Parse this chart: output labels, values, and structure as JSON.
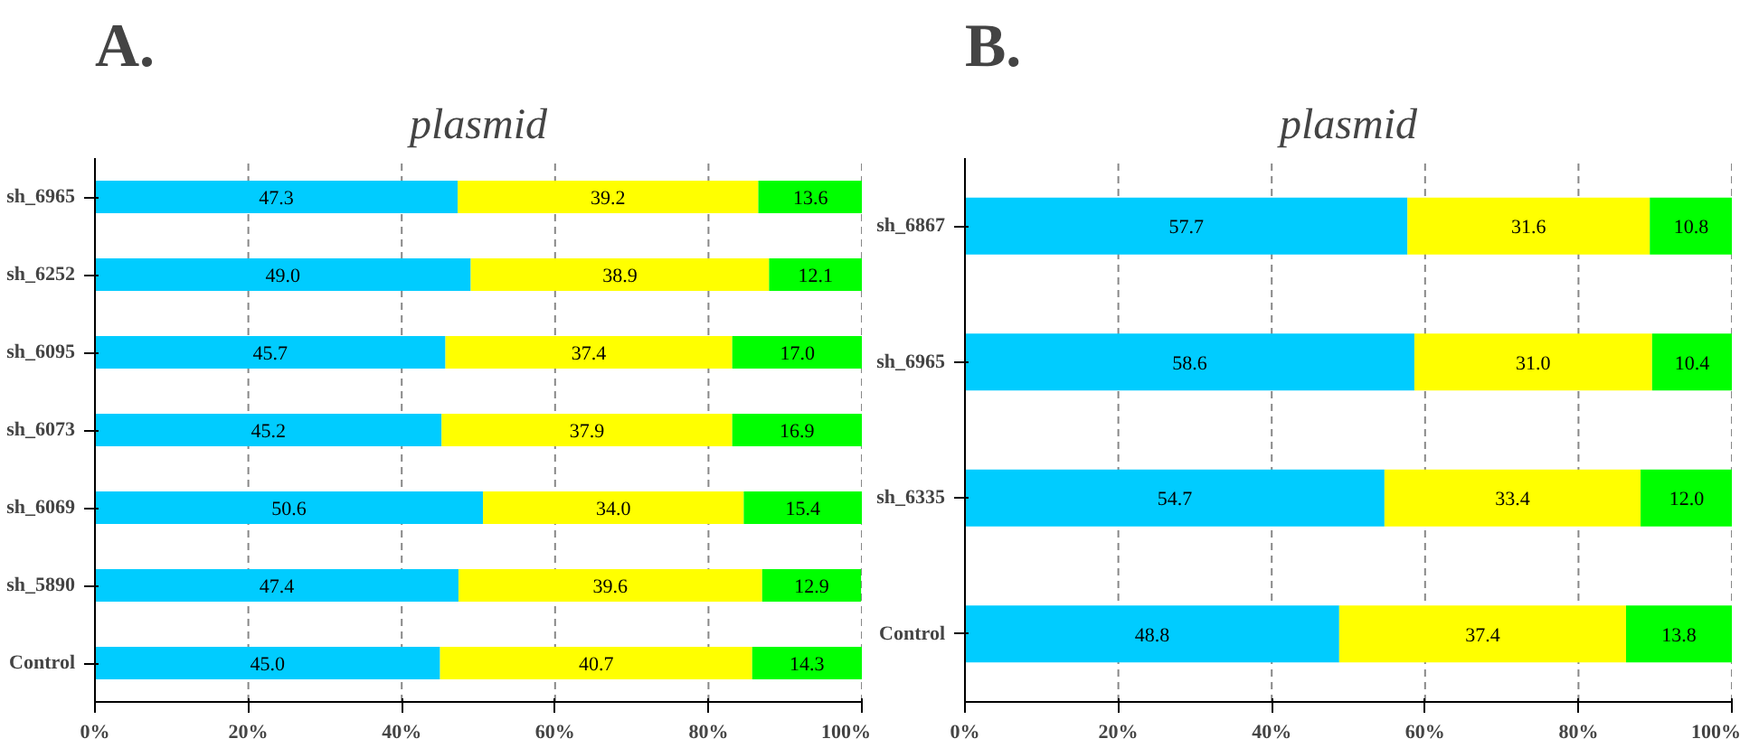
{
  "chart_data": [
    {
      "type": "bar",
      "title": "A.",
      "subtitle": "plasmid",
      "orientation": "horizontal",
      "stacked": true,
      "grid": "x",
      "categories": [
        "sh_6965",
        "sh_6252",
        "sh_6095",
        "sh_6073",
        "sh_6069",
        "sh_5890",
        "Control"
      ],
      "xlim": [
        0,
        100
      ],
      "xticks": [
        {
          "value": 0,
          "label": "0%"
        },
        {
          "value": 20,
          "label": "20%"
        },
        {
          "value": 40,
          "label": "40%"
        },
        {
          "value": 60,
          "label": "60%"
        },
        {
          "value": 80,
          "label": "80%"
        },
        {
          "value": 100,
          "label": "100%"
        }
      ],
      "series": [
        {
          "color": "#00ccff",
          "values": [
            47.3,
            49.0,
            45.7,
            45.2,
            50.6,
            47.4,
            45.0
          ],
          "value_labels": [
            "47.3",
            "49.0",
            "45.7",
            "45.2",
            "50.6",
            "47.4",
            "45.0"
          ]
        },
        {
          "color": "#ffff00",
          "values": [
            39.2,
            38.9,
            37.4,
            37.9,
            34.0,
            39.6,
            40.7
          ],
          "value_labels": [
            "39.2",
            "38.9",
            "37.4",
            "37.9",
            "34.0",
            "39.6",
            "40.7"
          ]
        },
        {
          "color": "#00ff00",
          "values": [
            13.6,
            12.1,
            17.0,
            16.9,
            15.4,
            12.9,
            14.3
          ],
          "value_labels": [
            "13.6",
            "12.1",
            "17.0",
            "16.9",
            "15.4",
            "12.9",
            "14.3"
          ]
        }
      ]
    },
    {
      "type": "bar",
      "title": "B.",
      "subtitle": "plasmid",
      "orientation": "horizontal",
      "stacked": true,
      "grid": "x",
      "categories": [
        "sh_6867",
        "sh_6965",
        "sh_6335",
        "Control"
      ],
      "xlim": [
        0,
        100
      ],
      "xticks": [
        {
          "value": 0,
          "label": "0%"
        },
        {
          "value": 20,
          "label": "20%"
        },
        {
          "value": 40,
          "label": "40%"
        },
        {
          "value": 60,
          "label": "60%"
        },
        {
          "value": 80,
          "label": "80%"
        },
        {
          "value": 100,
          "label": "100%"
        }
      ],
      "series": [
        {
          "color": "#00ccff",
          "values": [
            57.7,
            58.6,
            54.7,
            48.8
          ],
          "value_labels": [
            "57.7",
            "58.6",
            "54.7",
            "48.8"
          ]
        },
        {
          "color": "#ffff00",
          "values": [
            31.6,
            31.0,
            33.4,
            37.4
          ],
          "value_labels": [
            "31.6",
            "31.0",
            "33.4",
            "37.4"
          ]
        },
        {
          "color": "#00ff00",
          "values": [
            10.8,
            10.4,
            12.0,
            13.8
          ],
          "value_labels": [
            "10.8",
            "10.4",
            "12.0",
            "13.8"
          ]
        }
      ]
    }
  ]
}
